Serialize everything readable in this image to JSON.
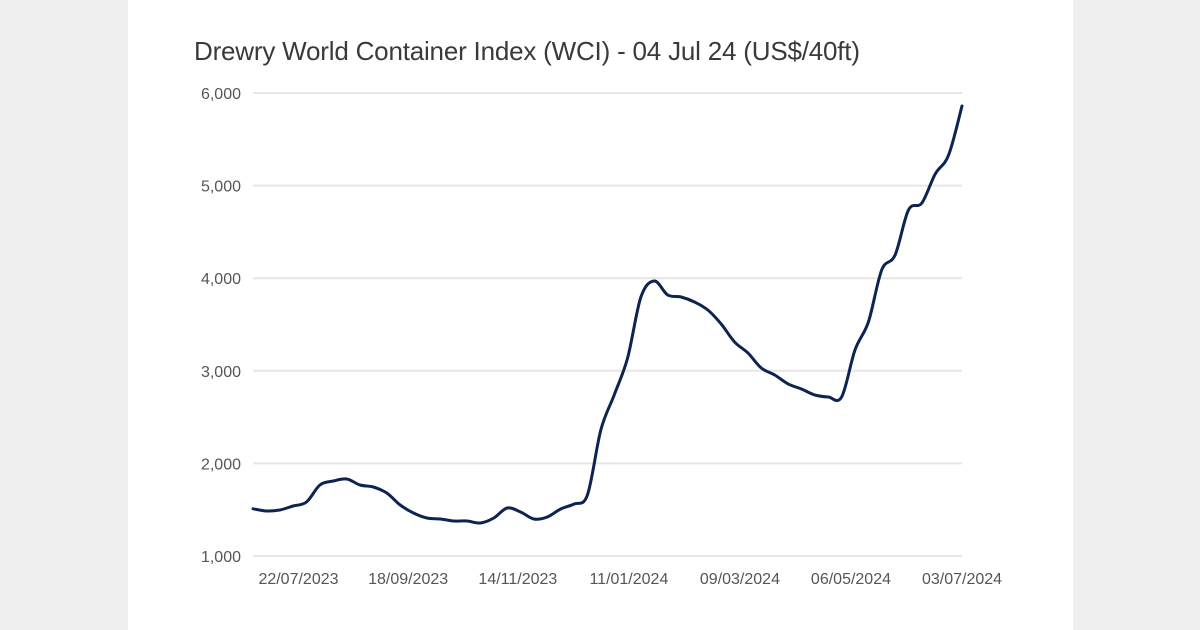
{
  "chart_data": {
    "type": "line",
    "title": "Drewry World Container Index (WCI) - 04 Jul 24 (US$/40ft)",
    "xlabel": "",
    "ylabel": "",
    "ylim": [
      1000,
      6000
    ],
    "grid": true,
    "legend": null,
    "y_ticks": [
      {
        "value": 6000,
        "label": "6,000"
      },
      {
        "value": 5000,
        "label": "5,000"
      },
      {
        "value": 4000,
        "label": "4,000"
      },
      {
        "value": 3000,
        "label": "3,000"
      },
      {
        "value": 2000,
        "label": "2,000"
      },
      {
        "value": 1000,
        "label": "1,000"
      }
    ],
    "x_tick_labels": [
      "22/07/2023",
      "18/09/2023",
      "14/11/2023",
      "11/01/2024",
      "09/03/2024",
      "06/05/2024",
      "03/07/2024"
    ],
    "x_tick_index": [
      3.4,
      11.6,
      19.8,
      28.1,
      36.4,
      44.7,
      53
    ],
    "line_color": "#0d2350",
    "series": [
      {
        "name": "WCI (US$/40ft)",
        "values": [
          1510,
          1486,
          1497,
          1540,
          1583,
          1767,
          1810,
          1832,
          1767,
          1745,
          1680,
          1551,
          1464,
          1410,
          1400,
          1378,
          1378,
          1356,
          1410,
          1518,
          1475,
          1400,
          1421,
          1508,
          1562,
          1659,
          2361,
          2739,
          3138,
          3797,
          3970,
          3819,
          3797,
          3743,
          3657,
          3505,
          3311,
          3192,
          3030,
          2955,
          2858,
          2803,
          2739,
          2717,
          2717,
          3225,
          3527,
          4089,
          4251,
          4737,
          4812,
          5125,
          5330,
          5860
        ]
      }
    ]
  }
}
